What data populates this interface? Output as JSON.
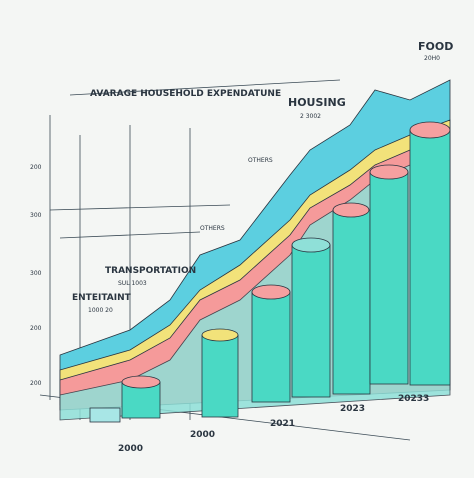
{
  "title": "AVARAGE HOUSEHOLD EXPENDATUNE",
  "labels": [
    {
      "name": "FOOD",
      "sub": "20H0"
    },
    {
      "name": "HOUSING",
      "sub": "2 3002"
    },
    {
      "name": "OTHERS"
    },
    {
      "name": "OTHERS"
    },
    {
      "name": "TRANSPORTATION",
      "sub": "SUL 1003"
    },
    {
      "name": "ENTEITAINT",
      "sub": "1000 20"
    }
  ],
  "axis_labels": [
    "200",
    "300",
    "300",
    "200",
    "200"
  ],
  "year_labels": [
    "2000",
    "2000",
    "2021",
    "2023",
    "20233"
  ]
}
